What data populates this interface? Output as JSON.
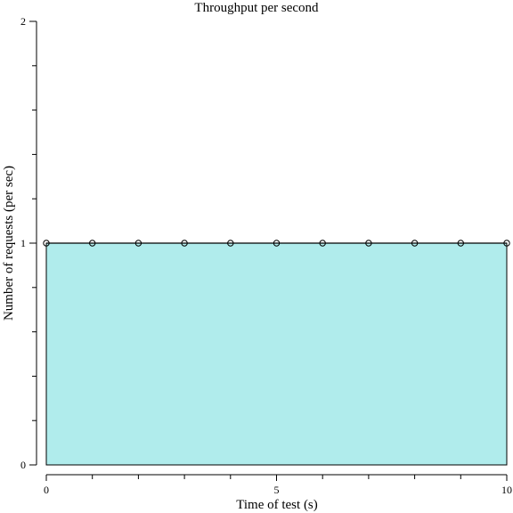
{
  "chart_data": {
    "type": "area",
    "title": "Throughput per second",
    "xlabel": "Time of test (s)",
    "ylabel": "Number of requests (per sec)",
    "xlim": [
      0,
      10
    ],
    "ylim": [
      0,
      2
    ],
    "x_major_ticks": [
      0,
      5,
      10
    ],
    "x_minor_ticks": [
      1,
      2,
      3,
      4,
      6,
      7,
      8,
      9
    ],
    "y_major_ticks": [
      0,
      1,
      2
    ],
    "y_minor_ticks": [
      0.2,
      0.4,
      0.6,
      0.8,
      1.2,
      1.4,
      1.6,
      1.8
    ],
    "grid": false,
    "fill_color": "#b0ecec",
    "line_color": "#000000",
    "x": [
      0,
      1,
      2,
      3,
      4,
      5,
      6,
      7,
      8,
      9,
      10
    ],
    "y": [
      1,
      1,
      1,
      1,
      1,
      1,
      1,
      1,
      1,
      1,
      1
    ]
  }
}
